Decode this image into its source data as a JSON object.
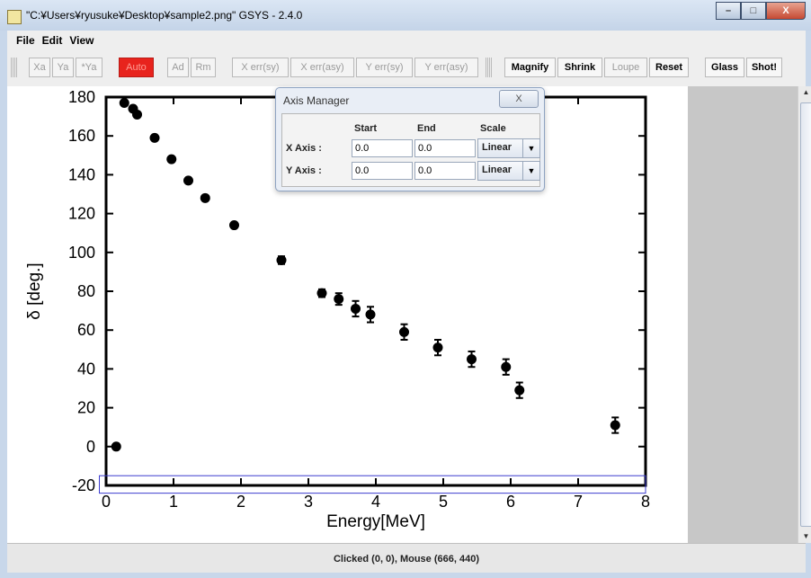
{
  "window": {
    "title": "\"C:¥Users¥ryusuke¥Desktop¥sample2.png\" GSYS - 2.4.0",
    "buttons": {
      "minimize": "–",
      "maximize": "□",
      "close": "X"
    }
  },
  "menu": [
    "File",
    "Edit",
    "View"
  ],
  "toolbar": {
    "xa": "Xa",
    "ya": "Ya",
    "star_ya": "*Ya",
    "auto": "Auto",
    "ad": "Ad",
    "rm": "Rm",
    "x_err_sy": "X err(sy)",
    "x_err_asy": "X err(asy)",
    "y_err_sy": "Y err(sy)",
    "y_err_asy": "Y err(asy)",
    "magnify": "Magnify",
    "shrink": "Shrink",
    "loupe": "Loupe",
    "reset": "Reset",
    "glass": "Glass",
    "shot": "Shot!"
  },
  "status": {
    "text": "Clicked (0, 0), Mouse (666, 440)"
  },
  "axis_manager": {
    "title": "Axis Manager",
    "close_label": "X",
    "headers": {
      "start": "Start",
      "end": "End",
      "scale": "Scale"
    },
    "x_axis": {
      "label": "X Axis :",
      "start": "0.0",
      "end": "0.0",
      "scale": "Linear"
    },
    "y_axis": {
      "label": "Y Axis :",
      "start": "0.0",
      "end": "0.0",
      "scale": "Linear"
    }
  },
  "chart_data": {
    "type": "scatter",
    "xlabel": "Energy[MeV]",
    "ylabel": "δ [deg.]",
    "xlim": [
      0,
      8
    ],
    "ylim": [
      -20,
      180
    ],
    "x_ticks": [
      "0",
      "1",
      "2",
      "3",
      "4",
      "5",
      "6",
      "7",
      "8"
    ],
    "y_ticks": [
      "-20",
      "0",
      "20",
      "40",
      "60",
      "80",
      "100",
      "120",
      "140",
      "160",
      "180"
    ],
    "points": [
      {
        "x": 0.15,
        "y": 0,
        "err": 0
      },
      {
        "x": 0.27,
        "y": 177,
        "err": 0
      },
      {
        "x": 0.4,
        "y": 174,
        "err": 0
      },
      {
        "x": 0.46,
        "y": 171,
        "err": 0
      },
      {
        "x": 0.72,
        "y": 159,
        "err": 0
      },
      {
        "x": 0.97,
        "y": 148,
        "err": 0
      },
      {
        "x": 1.22,
        "y": 137,
        "err": 0
      },
      {
        "x": 1.47,
        "y": 128,
        "err": 0
      },
      {
        "x": 1.9,
        "y": 114,
        "err": 0
      },
      {
        "x": 2.6,
        "y": 96,
        "err": 2
      },
      {
        "x": 3.2,
        "y": 79,
        "err": 2
      },
      {
        "x": 3.45,
        "y": 76,
        "err": 3
      },
      {
        "x": 3.7,
        "y": 71,
        "err": 4
      },
      {
        "x": 3.92,
        "y": 68,
        "err": 4
      },
      {
        "x": 4.42,
        "y": 59,
        "err": 4
      },
      {
        "x": 4.92,
        "y": 51,
        "err": 4
      },
      {
        "x": 5.42,
        "y": 45,
        "err": 4
      },
      {
        "x": 5.93,
        "y": 41,
        "err": 4
      },
      {
        "x": 6.13,
        "y": 29,
        "err": 4
      },
      {
        "x": 7.55,
        "y": 11,
        "err": 4
      }
    ],
    "selection_rect": {
      "x0": -0.1,
      "x1": 8.0,
      "y0": -24,
      "y1": -15
    },
    "selection_color": "#3c3cd0"
  }
}
